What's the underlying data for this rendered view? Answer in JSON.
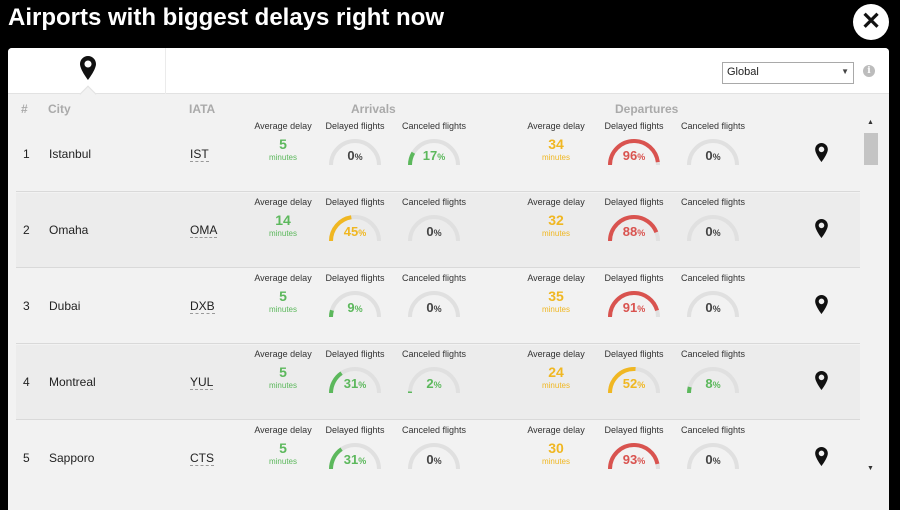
{
  "title": "Airports with biggest delays right now",
  "close_label": "✕",
  "region": {
    "selected": "Global"
  },
  "headers": {
    "rank": "#",
    "city": "City",
    "iata": "IATA",
    "arrivals": "Arrivals",
    "departures": "Departures"
  },
  "labels": {
    "avg": "Average delay",
    "delayed": "Delayed flights",
    "canceled": "Canceled flights",
    "unit": "minutes",
    "pct": "%"
  },
  "colors": {
    "green": "#5cb85c",
    "yellow": "#f0b722",
    "red": "#d9534f",
    "track": "#e0e0e0"
  },
  "icons": {
    "location_tab": "map-marker-icon",
    "row_map": "map-marker-icon",
    "info": "info-circle-icon",
    "close": "close-icon"
  },
  "rows": [
    {
      "rank": "1",
      "city": "Istanbul",
      "iata": "IST",
      "arr": {
        "avg": "5",
        "delayed": 0,
        "canceled": 17
      },
      "dep": {
        "avg": "34",
        "delayed": 96,
        "canceled": 0
      }
    },
    {
      "rank": "2",
      "city": "Omaha",
      "iata": "OMA",
      "arr": {
        "avg": "14",
        "delayed": 45,
        "canceled": 0
      },
      "dep": {
        "avg": "32",
        "delayed": 88,
        "canceled": 0
      }
    },
    {
      "rank": "3",
      "city": "Dubai",
      "iata": "DXB",
      "arr": {
        "avg": "5",
        "delayed": 9,
        "canceled": 0
      },
      "dep": {
        "avg": "35",
        "delayed": 91,
        "canceled": 0
      }
    },
    {
      "rank": "4",
      "city": "Montreal",
      "iata": "YUL",
      "arr": {
        "avg": "5",
        "delayed": 31,
        "canceled": 2
      },
      "dep": {
        "avg": "24",
        "delayed": 52,
        "canceled": 8
      }
    },
    {
      "rank": "5",
      "city": "Sapporo",
      "iata": "CTS",
      "arr": {
        "avg": "5",
        "delayed": 31,
        "canceled": 0
      },
      "dep": {
        "avg": "30",
        "delayed": 93,
        "canceled": 0
      }
    }
  ]
}
